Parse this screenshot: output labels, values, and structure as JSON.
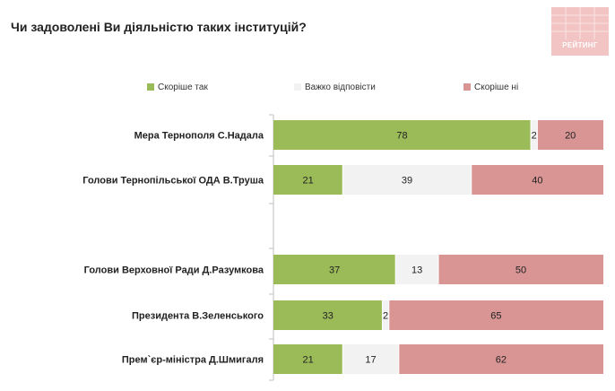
{
  "title": "Чи задоволені Ви діяльністю таких інституцій?",
  "logo": {
    "text": "РЕЙТИНГ"
  },
  "colors": {
    "yes": "#9bbb59",
    "hard": "#f2f2f2",
    "no": "#d99594",
    "axis": "#bfbfbf",
    "label": "#222222",
    "value": "#222222"
  },
  "chart_data": {
    "type": "bar",
    "orientation": "horizontal",
    "stacked": true,
    "title": "Чи задоволені Ви діяльністю таких інституцій?",
    "legend_position": "top",
    "xlim": [
      0,
      100
    ],
    "categories": [
      "Мера Тернополя С.Надала",
      "Голови Тернопільської ОДА В.Труша",
      "Голови Верховної Ради Д.Разумкова",
      "Президента В.Зеленського",
      "Прем`єр-міністра Д.Шмигаля"
    ],
    "series": [
      {
        "name": "Скоріше так",
        "key": "yes",
        "values": [
          78,
          21,
          37,
          33,
          21
        ]
      },
      {
        "name": "Важко відповісти",
        "key": "hard",
        "values": [
          2,
          39,
          13,
          2,
          17
        ]
      },
      {
        "name": "Скоріше ні",
        "key": "no",
        "values": [
          20,
          40,
          50,
          65,
          62
        ]
      }
    ]
  }
}
